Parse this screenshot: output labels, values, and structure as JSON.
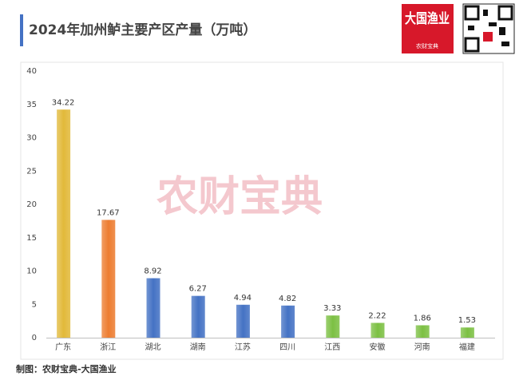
{
  "header": {
    "title": "2024年加州鲈主要产区产量（万吨）",
    "logo_title": "大国渔业",
    "logo_subtitle": "农财宝典"
  },
  "watermark": "农财宝典",
  "footer": "制图：农财宝典-大国渔业",
  "chart_data": {
    "type": "bar",
    "categories": [
      "广东",
      "浙江",
      "湖北",
      "湖南",
      "江苏",
      "四川",
      "江西",
      "安徽",
      "河南",
      "福建"
    ],
    "values": [
      34.22,
      17.67,
      8.92,
      6.27,
      4.94,
      4.82,
      3.33,
      2.22,
      1.86,
      1.53
    ],
    "colors": [
      "#e2b93a",
      "#ed7d31",
      "#4472c4",
      "#4472c4",
      "#4472c4",
      "#4472c4",
      "#7cc043",
      "#7cc043",
      "#7cc043",
      "#7cc043"
    ],
    "ylim": [
      0,
      40
    ],
    "yticks": [
      0,
      5,
      10,
      15,
      20,
      25,
      30,
      35,
      40
    ],
    "grid": false
  }
}
